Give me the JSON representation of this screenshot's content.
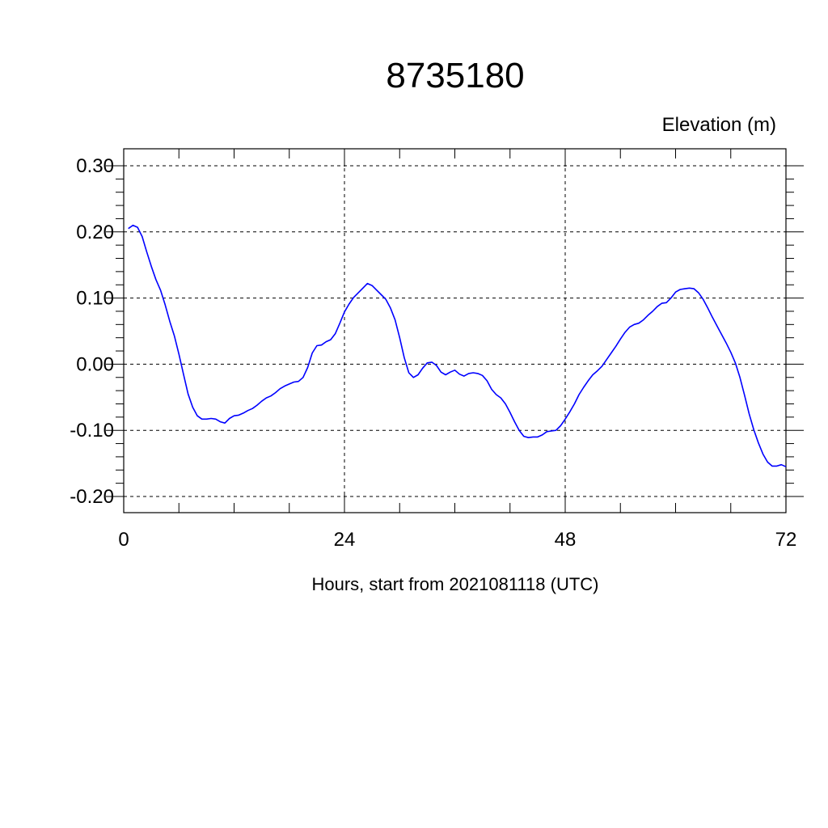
{
  "chart_data": {
    "type": "line",
    "title": "8735180",
    "unit_label": "Elevation (m)",
    "xlabel": "Hours, start from 2021081118 (UTC)",
    "ylabel": "",
    "xlim": [
      0,
      72
    ],
    "ylim": [
      -0.2,
      0.3
    ],
    "xticks": [
      0,
      24,
      48,
      72
    ],
    "xtick_labels": [
      "0",
      "24",
      "48",
      "72"
    ],
    "yticks": [
      -0.2,
      -0.1,
      0.0,
      0.1,
      0.2,
      0.3
    ],
    "ytick_labels": [
      "-0.20",
      "-0.10",
      "0.00",
      "0.10",
      "0.20",
      "0.30"
    ],
    "grid": true,
    "colors": {
      "series": "#0000ff",
      "axes": "#000000",
      "background": "#ffffff"
    },
    "series": [
      {
        "x": [
          0.5,
          1.0,
          1.5,
          2.0,
          2.5,
          3.0,
          3.5,
          4.0,
          4.5,
          5.0,
          5.5,
          6.0,
          6.5,
          7.0,
          7.5,
          8.0,
          8.5,
          9.0,
          9.5,
          10.0,
          10.5,
          11.0,
          11.5,
          12.0,
          12.5,
          13.0,
          13.5,
          14.0,
          14.5,
          15.0,
          15.5,
          16.0,
          16.5,
          17.0,
          17.5,
          18.0,
          18.5,
          19.0,
          19.5,
          20.0,
          20.5,
          21.0,
          21.5,
          22.0,
          22.5,
          23.0,
          23.5,
          24.0,
          24.5,
          25.0,
          25.5,
          26.0,
          26.5,
          27.0,
          27.5,
          28.0,
          28.5,
          29.0,
          29.5,
          30.0,
          30.5,
          31.0,
          31.5,
          32.0,
          32.5,
          33.0,
          33.5,
          34.0,
          34.5,
          35.0,
          35.5,
          36.0,
          36.5,
          37.0,
          37.5,
          38.0,
          38.5,
          39.0,
          39.5,
          40.0,
          40.5,
          41.0,
          41.5,
          42.0,
          42.5,
          43.0,
          43.5,
          44.0,
          44.5,
          45.0,
          45.5,
          46.0,
          46.5,
          47.0,
          47.5,
          48.0,
          48.5,
          49.0,
          49.5,
          50.0,
          50.5,
          51.0,
          51.5,
          52.0,
          52.5,
          53.0,
          53.5,
          54.0,
          54.5,
          55.0,
          55.5,
          56.0,
          56.5,
          57.0,
          57.5,
          58.0,
          58.5,
          59.0,
          59.5,
          60.0,
          60.5,
          61.0,
          61.5,
          62.0,
          62.5,
          63.0,
          63.5,
          64.0,
          64.5,
          65.0,
          65.5,
          66.0,
          66.5,
          67.0,
          67.5,
          68.0,
          68.5,
          69.0,
          69.5,
          70.0,
          70.5,
          71.0,
          71.5,
          72.0
        ],
        "values": [
          0.205,
          0.21,
          0.207,
          0.193,
          0.17,
          0.148,
          0.128,
          0.112,
          0.09,
          0.065,
          0.043,
          0.015,
          -0.015,
          -0.045,
          -0.065,
          -0.078,
          -0.083,
          -0.083,
          -0.082,
          -0.083,
          -0.087,
          -0.089,
          -0.082,
          -0.078,
          -0.077,
          -0.074,
          -0.07,
          -0.067,
          -0.062,
          -0.056,
          -0.051,
          -0.048,
          -0.043,
          -0.037,
          -0.033,
          -0.03,
          -0.027,
          -0.026,
          -0.02,
          -0.005,
          0.017,
          0.028,
          0.029,
          0.034,
          0.037,
          0.046,
          0.062,
          0.079,
          0.091,
          0.101,
          0.108,
          0.115,
          0.122,
          0.119,
          0.112,
          0.105,
          0.098,
          0.085,
          0.067,
          0.04,
          0.01,
          -0.013,
          -0.02,
          -0.016,
          -0.006,
          0.002,
          0.003,
          -0.002,
          -0.012,
          -0.016,
          -0.012,
          -0.009,
          -0.015,
          -0.018,
          -0.014,
          -0.013,
          -0.014,
          -0.017,
          -0.025,
          -0.038,
          -0.046,
          -0.051,
          -0.06,
          -0.073,
          -0.087,
          -0.1,
          -0.109,
          -0.111,
          -0.11,
          -0.11,
          -0.107,
          -0.102,
          -0.101,
          -0.1,
          -0.093,
          -0.083,
          -0.072,
          -0.06,
          -0.046,
          -0.035,
          -0.025,
          -0.016,
          -0.01,
          -0.003,
          0.007,
          0.017,
          0.027,
          0.038,
          0.048,
          0.056,
          0.06,
          0.062,
          0.067,
          0.074,
          0.08,
          0.087,
          0.092,
          0.093,
          0.1,
          0.109,
          0.113,
          0.114,
          0.115,
          0.114,
          0.108,
          0.098,
          0.085,
          0.071,
          0.058,
          0.045,
          0.032,
          0.018,
          0.002,
          -0.02,
          -0.047,
          -0.075,
          -0.099,
          -0.119,
          -0.136,
          -0.148,
          -0.154,
          -0.154,
          -0.152,
          -0.155
        ]
      }
    ]
  }
}
